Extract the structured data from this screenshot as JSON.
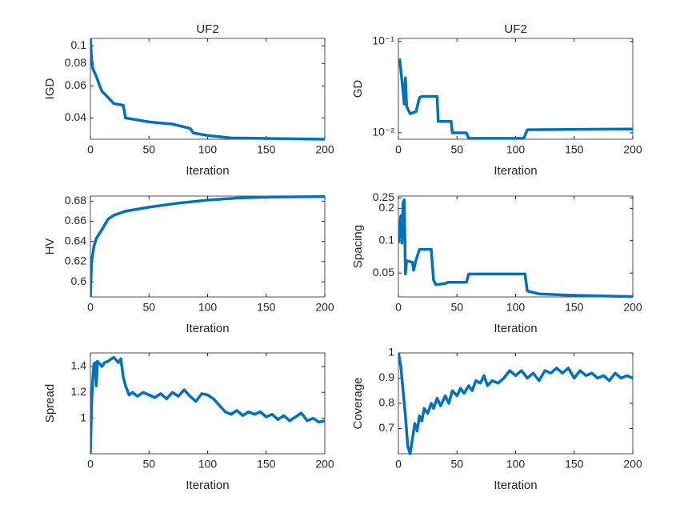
{
  "chart_data": [
    {
      "type": "line",
      "title": "UF2",
      "xlabel": "Iteration",
      "ylabel": "IGD",
      "color": "#0072BD",
      "ylog": true,
      "xlim": [
        0,
        200
      ],
      "xticks": [
        0,
        50,
        100,
        150,
        200
      ],
      "ylim": [
        0.0305,
        0.11
      ],
      "yticks": [
        0.04,
        0.06,
        0.08,
        0.1
      ],
      "x": [
        0,
        1,
        2,
        5,
        8,
        10,
        15,
        20,
        28,
        30,
        40,
        50,
        60,
        70,
        85,
        88,
        100,
        120,
        150,
        200
      ],
      "values": [
        0.11,
        0.085,
        0.075,
        0.068,
        0.06,
        0.056,
        0.052,
        0.048,
        0.047,
        0.04,
        0.039,
        0.038,
        0.0375,
        0.037,
        0.035,
        0.033,
        0.032,
        0.031,
        0.0308,
        0.0305
      ]
    },
    {
      "type": "line",
      "title": "UF2",
      "xlabel": "Iteration",
      "ylabel": "GD",
      "color": "#0072BD",
      "ylog": true,
      "xlim": [
        0,
        200
      ],
      "xticks": [
        0,
        50,
        100,
        150,
        200
      ],
      "ylim": [
        0.0085,
        0.108
      ],
      "yticks": [
        {
          "value": 0.01,
          "label": "10⁻²"
        },
        {
          "value": 0.1,
          "label": "10⁻¹"
        }
      ],
      "x": [
        1,
        3,
        5,
        6,
        7,
        10,
        15,
        18,
        20,
        33,
        34,
        45,
        46,
        58,
        60,
        107,
        110,
        200
      ],
      "values": [
        0.065,
        0.038,
        0.0207,
        0.04,
        0.0195,
        0.0162,
        0.017,
        0.0243,
        0.025,
        0.025,
        0.0133,
        0.0133,
        0.01,
        0.01,
        0.0087,
        0.0087,
        0.0108,
        0.011
      ]
    },
    {
      "type": "line",
      "xlabel": "Iteration",
      "ylabel": "HV",
      "color": "#0072BD",
      "ylog": false,
      "xlim": [
        0,
        200
      ],
      "xticks": [
        0,
        50,
        100,
        150,
        200
      ],
      "ylim": [
        0.585,
        0.685
      ],
      "yticks": [
        0.6,
        0.62,
        0.64,
        0.66,
        0.68
      ],
      "x": [
        0,
        1,
        3,
        5,
        10,
        15,
        20,
        30,
        50,
        75,
        100,
        125,
        150,
        200
      ],
      "values": [
        0.585,
        0.62,
        0.635,
        0.643,
        0.652,
        0.662,
        0.666,
        0.67,
        0.674,
        0.678,
        0.681,
        0.683,
        0.684,
        0.6845
      ]
    },
    {
      "type": "line",
      "xlabel": "Iteration",
      "ylabel": "Spacing",
      "color": "#0072BD",
      "ylog": true,
      "xlim": [
        0,
        200
      ],
      "xticks": [
        0,
        50,
        100,
        150,
        200
      ],
      "ylim": [
        0.03,
        0.26
      ],
      "yticks": [
        0.05,
        0.1,
        0.2,
        0.25
      ],
      "x": [
        0,
        2,
        3,
        4,
        5,
        6,
        7,
        12,
        13,
        15,
        18,
        28,
        30,
        32,
        40,
        42,
        58,
        60,
        108,
        110,
        120,
        150,
        200
      ],
      "values": [
        0.095,
        0.17,
        0.095,
        0.226,
        0.24,
        0.049,
        0.065,
        0.063,
        0.053,
        0.066,
        0.083,
        0.083,
        0.043,
        0.039,
        0.04,
        0.041,
        0.041,
        0.049,
        0.049,
        0.034,
        0.032,
        0.031,
        0.0302
      ]
    },
    {
      "type": "line",
      "xlabel": "Iteration",
      "ylabel": "Spread",
      "color": "#0072BD",
      "ylog": false,
      "xlim": [
        0,
        200
      ],
      "xticks": [
        0,
        50,
        100,
        150,
        200
      ],
      "ylim": [
        0.725,
        1.505
      ],
      "yticks": [
        1,
        1.2,
        1.4
      ],
      "x": [
        0,
        1,
        2,
        3,
        4,
        5,
        6,
        8,
        10,
        12,
        15,
        18,
        20,
        22,
        24,
        26,
        28,
        30,
        33,
        36,
        40,
        45,
        50,
        55,
        60,
        65,
        70,
        75,
        80,
        85,
        90,
        95,
        100,
        105,
        110,
        115,
        120,
        125,
        130,
        135,
        140,
        145,
        150,
        155,
        160,
        165,
        170,
        175,
        180,
        185,
        190,
        195,
        200
      ],
      "values": [
        0.73,
        1.1,
        1.3,
        1.42,
        1.43,
        1.25,
        1.44,
        1.42,
        1.4,
        1.43,
        1.44,
        1.46,
        1.47,
        1.45,
        1.43,
        1.46,
        1.32,
        1.25,
        1.18,
        1.2,
        1.17,
        1.2,
        1.18,
        1.16,
        1.19,
        1.15,
        1.2,
        1.17,
        1.22,
        1.17,
        1.13,
        1.19,
        1.18,
        1.15,
        1.1,
        1.05,
        1.03,
        1.06,
        1.02,
        1.05,
        1.03,
        1.05,
        1.01,
        1.03,
        0.99,
        1.02,
        0.98,
        1.01,
        1.04,
        0.98,
        1,
        0.97,
        0.98
      ]
    },
    {
      "type": "line",
      "xlabel": "Iteration",
      "ylabel": "Coverage",
      "color": "#0072BD",
      "ylog": false,
      "xlim": [
        0,
        200
      ],
      "xticks": [
        0,
        50,
        100,
        150,
        200
      ],
      "ylim": [
        0.6,
        1
      ],
      "yticks": [
        0.7,
        0.8,
        0.9,
        1
      ],
      "x": [
        0,
        2,
        4,
        6,
        8,
        10,
        12,
        14,
        16,
        18,
        20,
        22,
        25,
        28,
        30,
        33,
        36,
        40,
        43,
        46,
        50,
        53,
        56,
        60,
        63,
        66,
        70,
        73,
        76,
        80,
        85,
        90,
        95,
        100,
        105,
        110,
        115,
        120,
        125,
        130,
        135,
        140,
        145,
        150,
        155,
        160,
        165,
        170,
        175,
        180,
        185,
        190,
        195,
        200
      ],
      "values": [
        1,
        0.95,
        0.85,
        0.75,
        0.63,
        0.6,
        0.66,
        0.72,
        0.69,
        0.75,
        0.73,
        0.78,
        0.76,
        0.8,
        0.78,
        0.82,
        0.79,
        0.83,
        0.8,
        0.85,
        0.83,
        0.86,
        0.84,
        0.87,
        0.85,
        0.89,
        0.88,
        0.91,
        0.87,
        0.89,
        0.88,
        0.9,
        0.93,
        0.91,
        0.93,
        0.9,
        0.92,
        0.89,
        0.93,
        0.92,
        0.94,
        0.92,
        0.94,
        0.9,
        0.93,
        0.91,
        0.92,
        0.9,
        0.91,
        0.89,
        0.92,
        0.9,
        0.91,
        0.9
      ]
    }
  ]
}
